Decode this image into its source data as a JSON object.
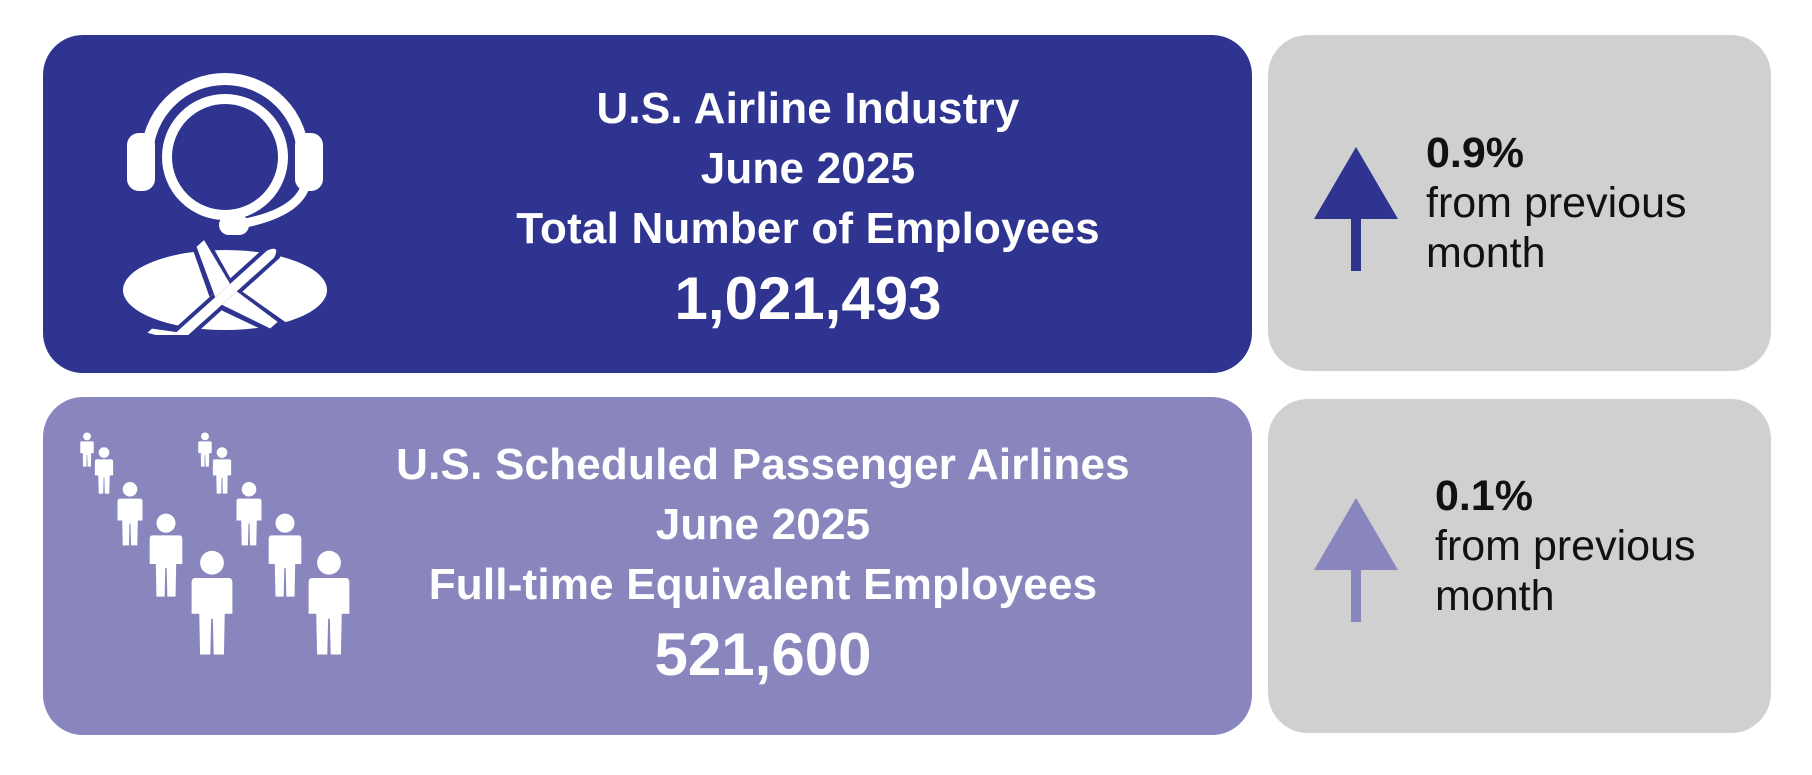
{
  "colors": {
    "industry_card": "#2e3490",
    "passenger_card": "#8986be",
    "change_card": "#d0d0d1",
    "arrow_dark": "#2e3490",
    "arrow_light": "#8986be"
  },
  "industry": {
    "title": "U.S. Airline Industry",
    "period": "June 2025",
    "metric": "Total Number of Employees",
    "value": "1,021,493",
    "icon": "headset-airplane-icon",
    "change": {
      "direction": "up",
      "percent": "0.9%",
      "label": "from previous month"
    }
  },
  "passenger": {
    "title": "U.S. Scheduled Passenger Airlines",
    "period": "June 2025",
    "metric": "Full-time Equivalent Employees",
    "value": "521,600",
    "icon": "people-rows-icon",
    "change": {
      "direction": "up",
      "percent": "0.1%",
      "label": "from previous month"
    }
  }
}
